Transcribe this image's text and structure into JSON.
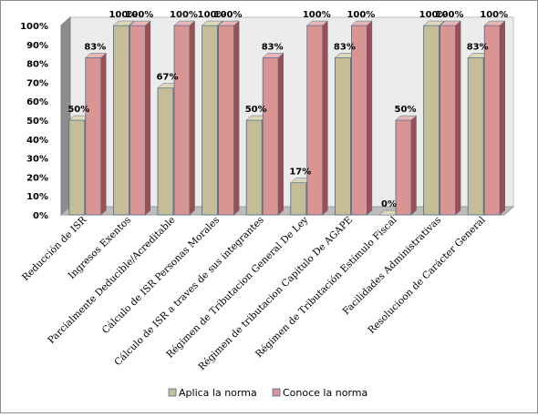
{
  "chart_data": {
    "type": "bar",
    "title": "",
    "xlabel": "",
    "ylabel": "",
    "ylim": [
      0,
      100
    ],
    "y_ticks": [
      "0%",
      "10%",
      "20%",
      "30%",
      "40%",
      "50%",
      "60%",
      "70%",
      "80%",
      "90%",
      "100%"
    ],
    "grid": false,
    "style": "3d-clustered-column",
    "legend_position": "bottom",
    "categories": [
      "Reducción de ISR",
      "Ingresos Exentos",
      "Parcialmente Deducible/Acreditable",
      "Cálculo de ISR Personas Morales",
      "Cálculo de ISR a traves de sus integrantes",
      "Régimen de Tributacion General De Ley",
      "Régimen de tributacion Capitulo De AGAPE",
      "Régimen de Tributación Estímulo Fiscal",
      "Facilidades Administrativas",
      "Resolucioon de Carácter General"
    ],
    "series": [
      {
        "name": "Aplica la norma",
        "color": "#c4bd97",
        "side_color": "#8e8865",
        "top_color": "#ddd8b8",
        "values": [
          50,
          100,
          67,
          100,
          50,
          17,
          83,
          0,
          100,
          83
        ],
        "labels": [
          "50%",
          "100%",
          "67%",
          "100%",
          "50%",
          "17%",
          "83%",
          "0%",
          "100%",
          "83%"
        ]
      },
      {
        "name": "Conoce la norma",
        "color": "#d99594",
        "side_color": "#9c4f4e",
        "top_color": "#e8b6b5",
        "values": [
          83,
          100,
          100,
          100,
          83,
          100,
          100,
          50,
          100,
          100
        ],
        "labels": [
          "83%",
          "100%",
          "100%",
          "100%",
          "83%",
          "100%",
          "100%",
          "50%",
          "100%",
          "100%"
        ]
      }
    ]
  }
}
